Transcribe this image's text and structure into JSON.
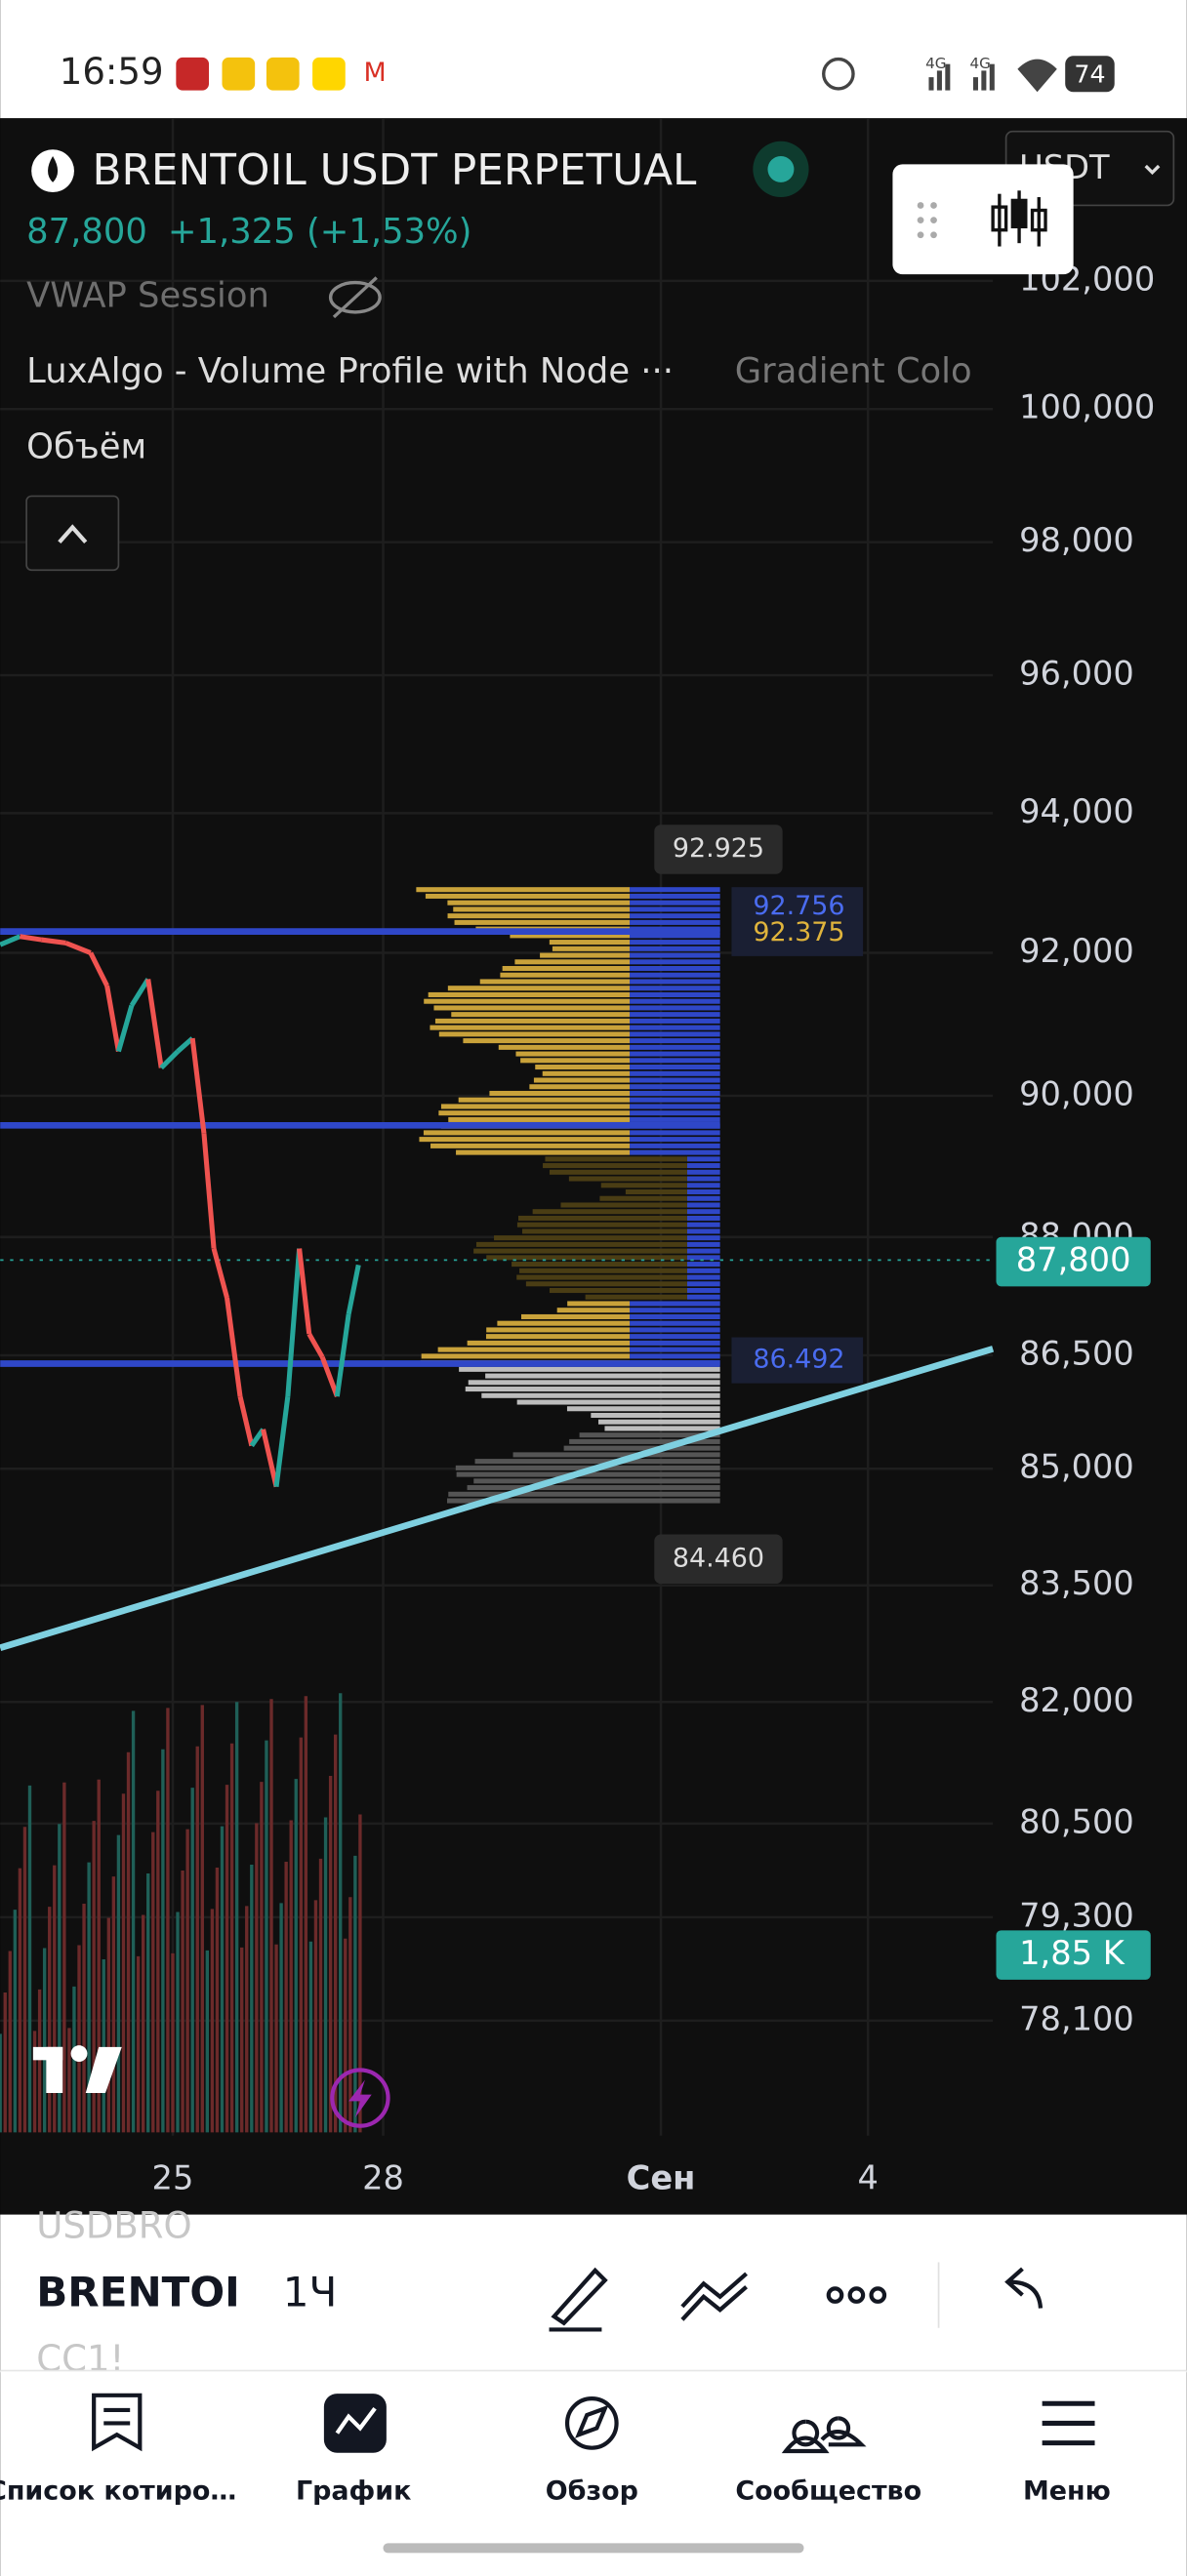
{
  "status_bar": {
    "time": "16:59",
    "battery": "74",
    "network_1": "4G",
    "network_2": "4G"
  },
  "header": {
    "symbol": "BRENTOIL USDT PERPETUAL",
    "price": "87,800",
    "change": "+1,325 (+1,53%)",
    "indicator_1": "VWAP Session",
    "indicator_2": "LuxAlgo - Volume Profile with Node ···",
    "indicator_2_setting": "Gradient Colo",
    "indicator_3": "Объём",
    "currency": "USDT"
  },
  "price_axis": [
    "102,000",
    "100,000",
    "98,000",
    "96,000",
    "94,000",
    "92,000",
    "90,000",
    "88,000",
    "86,500",
    "85,000",
    "83,500",
    "82,000",
    "80,500",
    "79,300",
    "78,100"
  ],
  "time_axis": [
    "25",
    "28",
    "Сен",
    "4"
  ],
  "price_tags": {
    "last_price": "87,800",
    "volume": "1,85 K"
  },
  "profile_labels": {
    "high": "92.925",
    "upper_blue": "92.756",
    "upper_yellow": "92.375",
    "lower_blue": "86.492",
    "low": "84.460"
  },
  "toolbar": {
    "prev_symbol": "USDBRO",
    "symbol": "BRENTOI",
    "interval": "1Ч",
    "next_symbol": "CC1!"
  },
  "nav": [
    "Список котиро…",
    "График",
    "Обзор",
    "Сообщество",
    "Меню"
  ]
}
